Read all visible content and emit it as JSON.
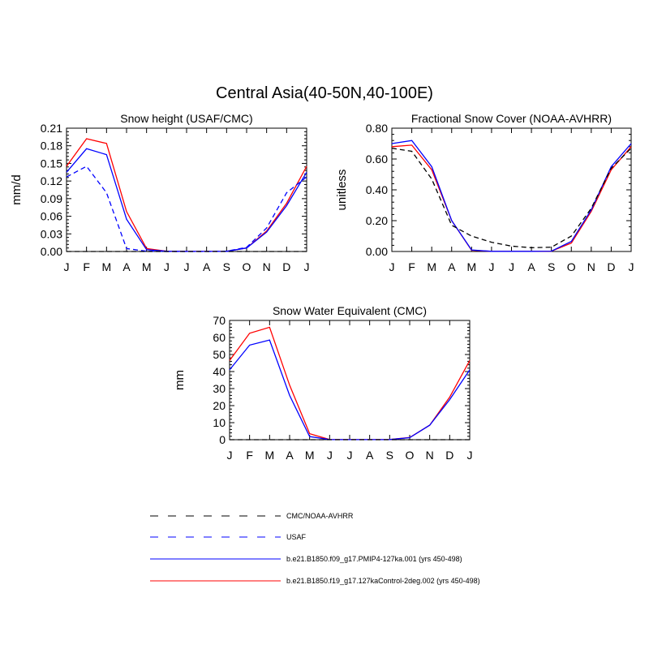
{
  "title": "Central Asia(40-50N,40-100E)",
  "colors": {
    "model_a": "#0000ff",
    "model_b": "#ff0000",
    "obs": "#000000",
    "usaf": "#0000ff"
  },
  "legend": [
    {
      "label": "CMC/NOAA-AVHRR",
      "color": "#000000",
      "style": "dashed"
    },
    {
      "label": "USAF",
      "color": "#0000ff",
      "style": "dashed"
    },
    {
      "label": "b.e21.B1850.f09_g17.PMIP4-127ka.001 (yrs 450-498)",
      "color": "#0000ff",
      "style": "solid"
    },
    {
      "label": "b.e21.B1850.f19_g17.127kaControl-2deg.002 (yrs 450-498)",
      "color": "#ff0000",
      "style": "solid"
    }
  ],
  "chart_data": [
    {
      "type": "line",
      "title": "Snow height (USAF/CMC)",
      "ylabel": "mm/d",
      "ylim": [
        0,
        0.21
      ],
      "yticks": [
        "0.00",
        "0.03",
        "0.06",
        "0.09",
        "0.12",
        "0.15",
        "0.18",
        "0.21"
      ],
      "categories": [
        "J",
        "F",
        "M",
        "A",
        "M",
        "J",
        "J",
        "A",
        "S",
        "O",
        "N",
        "D",
        "J"
      ],
      "series": [
        {
          "name": "b.e21.B1850.f19_g17.127kaControl-2deg.002 (yrs 450-498)",
          "color": "#ff0000",
          "dash": false,
          "values": [
            0.145,
            0.192,
            0.184,
            0.068,
            0.005,
            0.0005,
            0.0002,
            0.0002,
            0.0003,
            0.006,
            0.035,
            0.082,
            0.145
          ]
        },
        {
          "name": "b.e21.B1850.f09_g17.PMIP4-127ka.001 (yrs 450-498)",
          "color": "#0000ff",
          "dash": false,
          "values": [
            0.135,
            0.175,
            0.165,
            0.055,
            0.003,
            0.0004,
            0.0002,
            0.0002,
            0.0003,
            0.006,
            0.033,
            0.078,
            0.135
          ]
        },
        {
          "name": "USAF",
          "color": "#0000ff",
          "dash": true,
          "values": [
            0.127,
            0.145,
            0.1,
            0.005,
            0.0005,
            0.0,
            0.0,
            0.0,
            0.0005,
            0.007,
            0.04,
            0.1,
            0.127
          ]
        },
        {
          "name": "CMC/NOAA-AVHRR",
          "color": "#000000",
          "dash": true,
          "values": [
            0,
            0,
            0,
            0,
            0,
            0,
            0,
            0,
            0,
            0,
            0,
            0,
            0
          ]
        }
      ]
    },
    {
      "type": "line",
      "title": "Fractional Snow Cover (NOAA-AVHRR)",
      "ylabel": "unitless",
      "ylim": [
        0,
        0.8
      ],
      "yticks": [
        "0.00",
        "0.20",
        "0.40",
        "0.60",
        "0.80"
      ],
      "categories": [
        "J",
        "F",
        "M",
        "A",
        "M",
        "J",
        "J",
        "A",
        "S",
        "O",
        "N",
        "D",
        "J"
      ],
      "series": [
        {
          "name": "b.e21.B1850.f19_g17.127kaControl-2deg.002 (yrs 450-498)",
          "color": "#ff0000",
          "dash": false,
          "values": [
            0.68,
            0.69,
            0.53,
            0.2,
            0.008,
            0.001,
            0.001,
            0.001,
            0.002,
            0.055,
            0.26,
            0.53,
            0.68
          ]
        },
        {
          "name": "b.e21.B1850.f09_g17.PMIP4-127ka.001 (yrs 450-498)",
          "color": "#0000ff",
          "dash": false,
          "values": [
            0.7,
            0.72,
            0.55,
            0.2,
            0.01,
            0.001,
            0.001,
            0.001,
            0.002,
            0.065,
            0.27,
            0.55,
            0.7
          ]
        },
        {
          "name": "CMC/NOAA-AVHRR",
          "color": "#000000",
          "dash": true,
          "values": [
            0.67,
            0.65,
            0.47,
            0.17,
            0.1,
            0.06,
            0.035,
            0.025,
            0.028,
            0.1,
            0.28,
            0.54,
            0.67
          ]
        }
      ]
    },
    {
      "type": "line",
      "title": "Snow Water Equivalent (CMC)",
      "ylabel": "mm",
      "ylim": [
        0,
        70
      ],
      "yticks": [
        "0",
        "10",
        "20",
        "30",
        "40",
        "50",
        "60",
        "70"
      ],
      "categories": [
        "J",
        "F",
        "M",
        "A",
        "M",
        "J",
        "J",
        "A",
        "S",
        "O",
        "N",
        "D",
        "J"
      ],
      "series": [
        {
          "name": "b.e21.B1850.f19_g17.127kaControl-2deg.002 (yrs 450-498)",
          "color": "#ff0000",
          "dash": false,
          "values": [
            46.5,
            62.5,
            66,
            32,
            3.5,
            0.1,
            0.05,
            0.05,
            0.1,
            1.3,
            8.5,
            25,
            46.5
          ]
        },
        {
          "name": "b.e21.B1850.f09_g17.PMIP4-127ka.001 (yrs 450-498)",
          "color": "#0000ff",
          "dash": false,
          "values": [
            41,
            55.5,
            58.5,
            26,
            1.8,
            0.1,
            0.05,
            0.05,
            0.1,
            1.2,
            8.5,
            23.5,
            41
          ]
        },
        {
          "name": "CMC/NOAA-AVHRR",
          "color": "#000000",
          "dash": true,
          "values": [
            0,
            0,
            0,
            0,
            0,
            0,
            0,
            0,
            0,
            0,
            0,
            0,
            0
          ]
        }
      ]
    }
  ]
}
